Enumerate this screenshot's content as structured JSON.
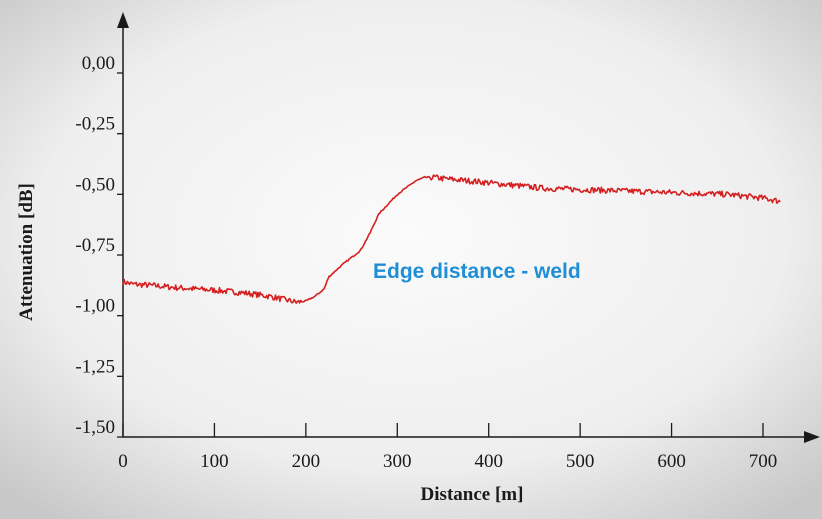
{
  "chart_data": {
    "type": "line",
    "xlabel": "Distance [m]",
    "ylabel": "Attenuation [dB]",
    "xlim": [
      0,
      720
    ],
    "ylim": [
      -1.5,
      0
    ],
    "x_ticks": [
      0,
      100,
      200,
      300,
      400,
      500,
      600,
      700
    ],
    "y_ticks": [
      0,
      -0.25,
      -0.5,
      -0.75,
      -1.0,
      -1.25,
      -1.5
    ],
    "x_tick_labels": [
      "0",
      "100",
      "200",
      "300",
      "400",
      "500",
      "600",
      "700"
    ],
    "y_tick_labels": [
      "0,00",
      "-0,25",
      "-0,50",
      "-0,75",
      "-1,00",
      "-1,25",
      "-1,50"
    ],
    "annotation": "Edge distance - weld",
    "grid": false,
    "series": [
      {
        "color": "#d42020",
        "x": [
          0,
          10,
          30,
          60,
          100,
          130,
          160,
          190,
          200,
          210,
          220,
          225,
          240,
          260,
          270,
          280,
          300,
          320,
          330,
          340,
          350,
          380,
          420,
          460,
          500,
          540,
          580,
          620,
          660,
          700,
          720
        ],
        "y": [
          -0.86,
          -0.87,
          -0.875,
          -0.885,
          -0.895,
          -0.905,
          -0.92,
          -0.945,
          -0.94,
          -0.92,
          -0.89,
          -0.84,
          -0.79,
          -0.73,
          -0.66,
          -0.58,
          -0.5,
          -0.445,
          -0.43,
          -0.43,
          -0.435,
          -0.445,
          -0.46,
          -0.475,
          -0.48,
          -0.485,
          -0.49,
          -0.495,
          -0.5,
          -0.515,
          -0.53
        ]
      }
    ]
  },
  "colors": {
    "line": "#d42020",
    "annotation": "#1e8fd6",
    "axis": "#1a1a1a"
  }
}
